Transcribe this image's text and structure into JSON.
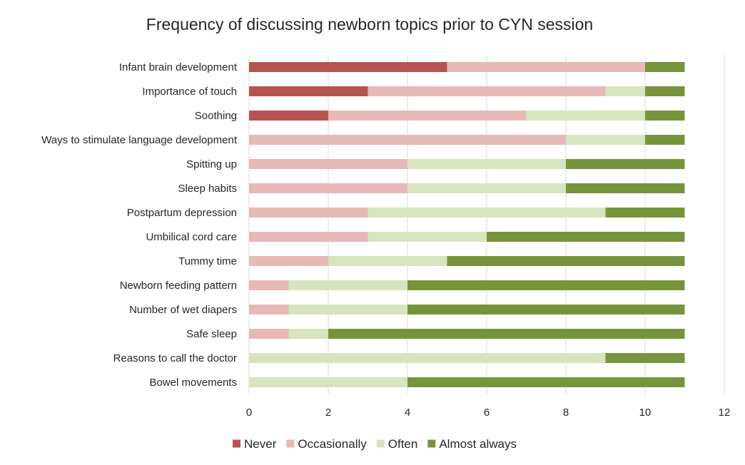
{
  "chart_data": {
    "type": "bar",
    "orientation": "horizontal",
    "stacked": true,
    "title": "Frequency of discussing newborn topics prior to CYN session",
    "xlabel": "",
    "ylabel": "",
    "xlim": [
      0,
      12
    ],
    "x_ticks": [
      0,
      2,
      4,
      6,
      8,
      10,
      12
    ],
    "grid": true,
    "legend_position": "bottom",
    "categories": [
      "Infant brain development",
      "Importance of touch",
      "Soothing",
      "Ways to stimulate language development",
      "Spitting up",
      "Sleep habits",
      "Postpartum depression",
      "Umbilical cord care",
      "Tummy time",
      "Newborn feeding pattern",
      "Number of wet diapers",
      "Safe sleep",
      "Reasons to call the doctor",
      "Bowel movements"
    ],
    "series": [
      {
        "name": "Never",
        "color": "#b85450",
        "values": [
          5,
          3,
          2,
          0,
          0,
          0,
          0,
          0,
          0,
          0,
          0,
          0,
          0,
          0
        ]
      },
      {
        "name": "Occasionally",
        "color": "#e6b9b8",
        "values": [
          5,
          6,
          5,
          8,
          4,
          4,
          3,
          3,
          2,
          1,
          1,
          1,
          0,
          0
        ]
      },
      {
        "name": "Often",
        "color": "#d7e4bd",
        "values": [
          0,
          1,
          3,
          2,
          4,
          4,
          6,
          3,
          3,
          3,
          3,
          1,
          9,
          4
        ]
      },
      {
        "name": "Almost always",
        "color": "#77933c",
        "values": [
          1,
          1,
          1,
          1,
          3,
          3,
          2,
          5,
          6,
          7,
          7,
          9,
          2,
          7
        ]
      }
    ]
  }
}
